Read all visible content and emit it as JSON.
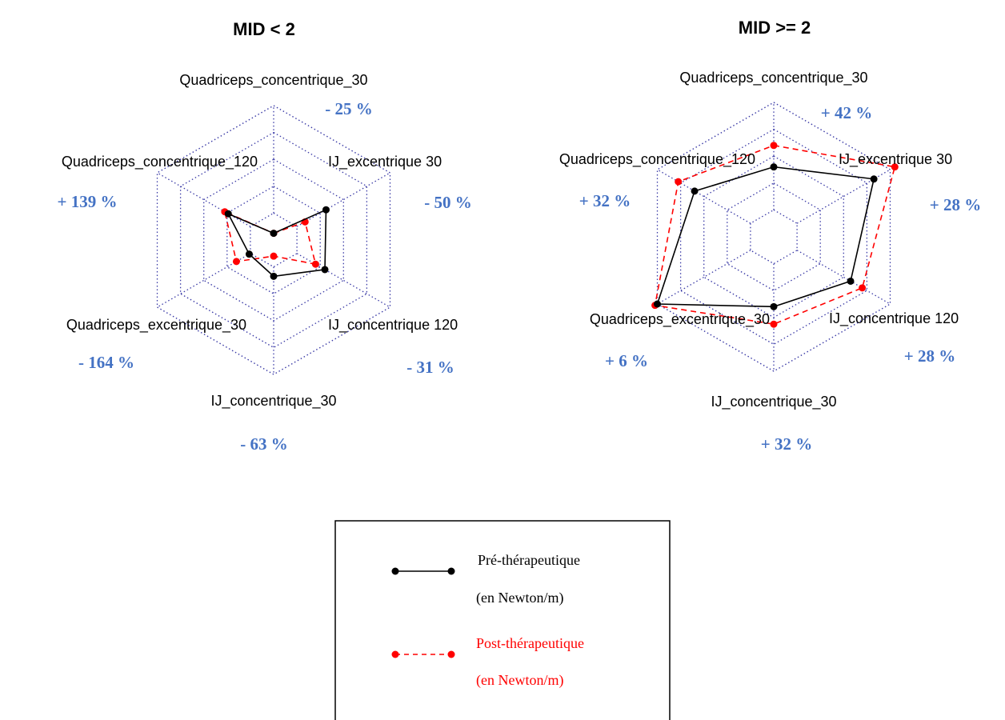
{
  "chart_data": [
    {
      "type": "radar",
      "title": "MID < 2",
      "axes": [
        "Quadriceps_concentrique_30",
        "IJ_excentrique 30",
        "IJ_concentrique 120",
        "IJ_concentrique_30",
        "Quadriceps_excentrique_30",
        "Quadriceps_concentrique_120"
      ],
      "change_labels": [
        "- 25 %",
        "- 50 %",
        "- 31 %",
        "- 63 %",
        "- 164 %",
        "+ 139 %"
      ],
      "rlim": [
        0,
        1
      ],
      "series": [
        {
          "name": "Pré-thérapeutique",
          "values": [
            0.05,
            0.45,
            0.44,
            0.27,
            0.21,
            0.39
          ]
        },
        {
          "name": "Post-thérapeutique",
          "values": [
            0.05,
            0.27,
            0.36,
            0.12,
            0.32,
            0.42
          ]
        }
      ]
    },
    {
      "type": "radar",
      "title": "MID >= 2",
      "axes": [
        "Quadriceps_concentrique_30",
        "IJ_excentrique 30",
        "IJ_concentrique 120",
        "IJ_concentrique_30",
        "Quadriceps_excentrique_30",
        "Quadriceps_concentrique_120"
      ],
      "change_labels": [
        "+ 42 %",
        "+ 28 %",
        "+ 28 %",
        "+ 32 %",
        "+ 6 %",
        "+ 32 %"
      ],
      "rlim": [
        0,
        1
      ],
      "series": [
        {
          "name": "Pré-thérapeutique",
          "values": [
            0.52,
            0.86,
            0.66,
            0.52,
            1.0,
            0.68
          ]
        },
        {
          "name": "Post-thérapeutique",
          "values": [
            0.68,
            1.04,
            0.76,
            0.65,
            1.02,
            0.82
          ]
        }
      ]
    }
  ],
  "legend": {
    "items": [
      {
        "line1": "Pré-thérapeutique",
        "line2": "(en Newton/m)",
        "color": "#000000",
        "style": "solid"
      },
      {
        "line1": "Post-thérapeutique",
        "line2": "(en Newton/m)",
        "color": "#ff0000",
        "style": "dashed"
      }
    ]
  },
  "colors": {
    "pre": "#000000",
    "post": "#ff0000",
    "grid": "#3a3aa6",
    "change_label": "#4472c4"
  }
}
